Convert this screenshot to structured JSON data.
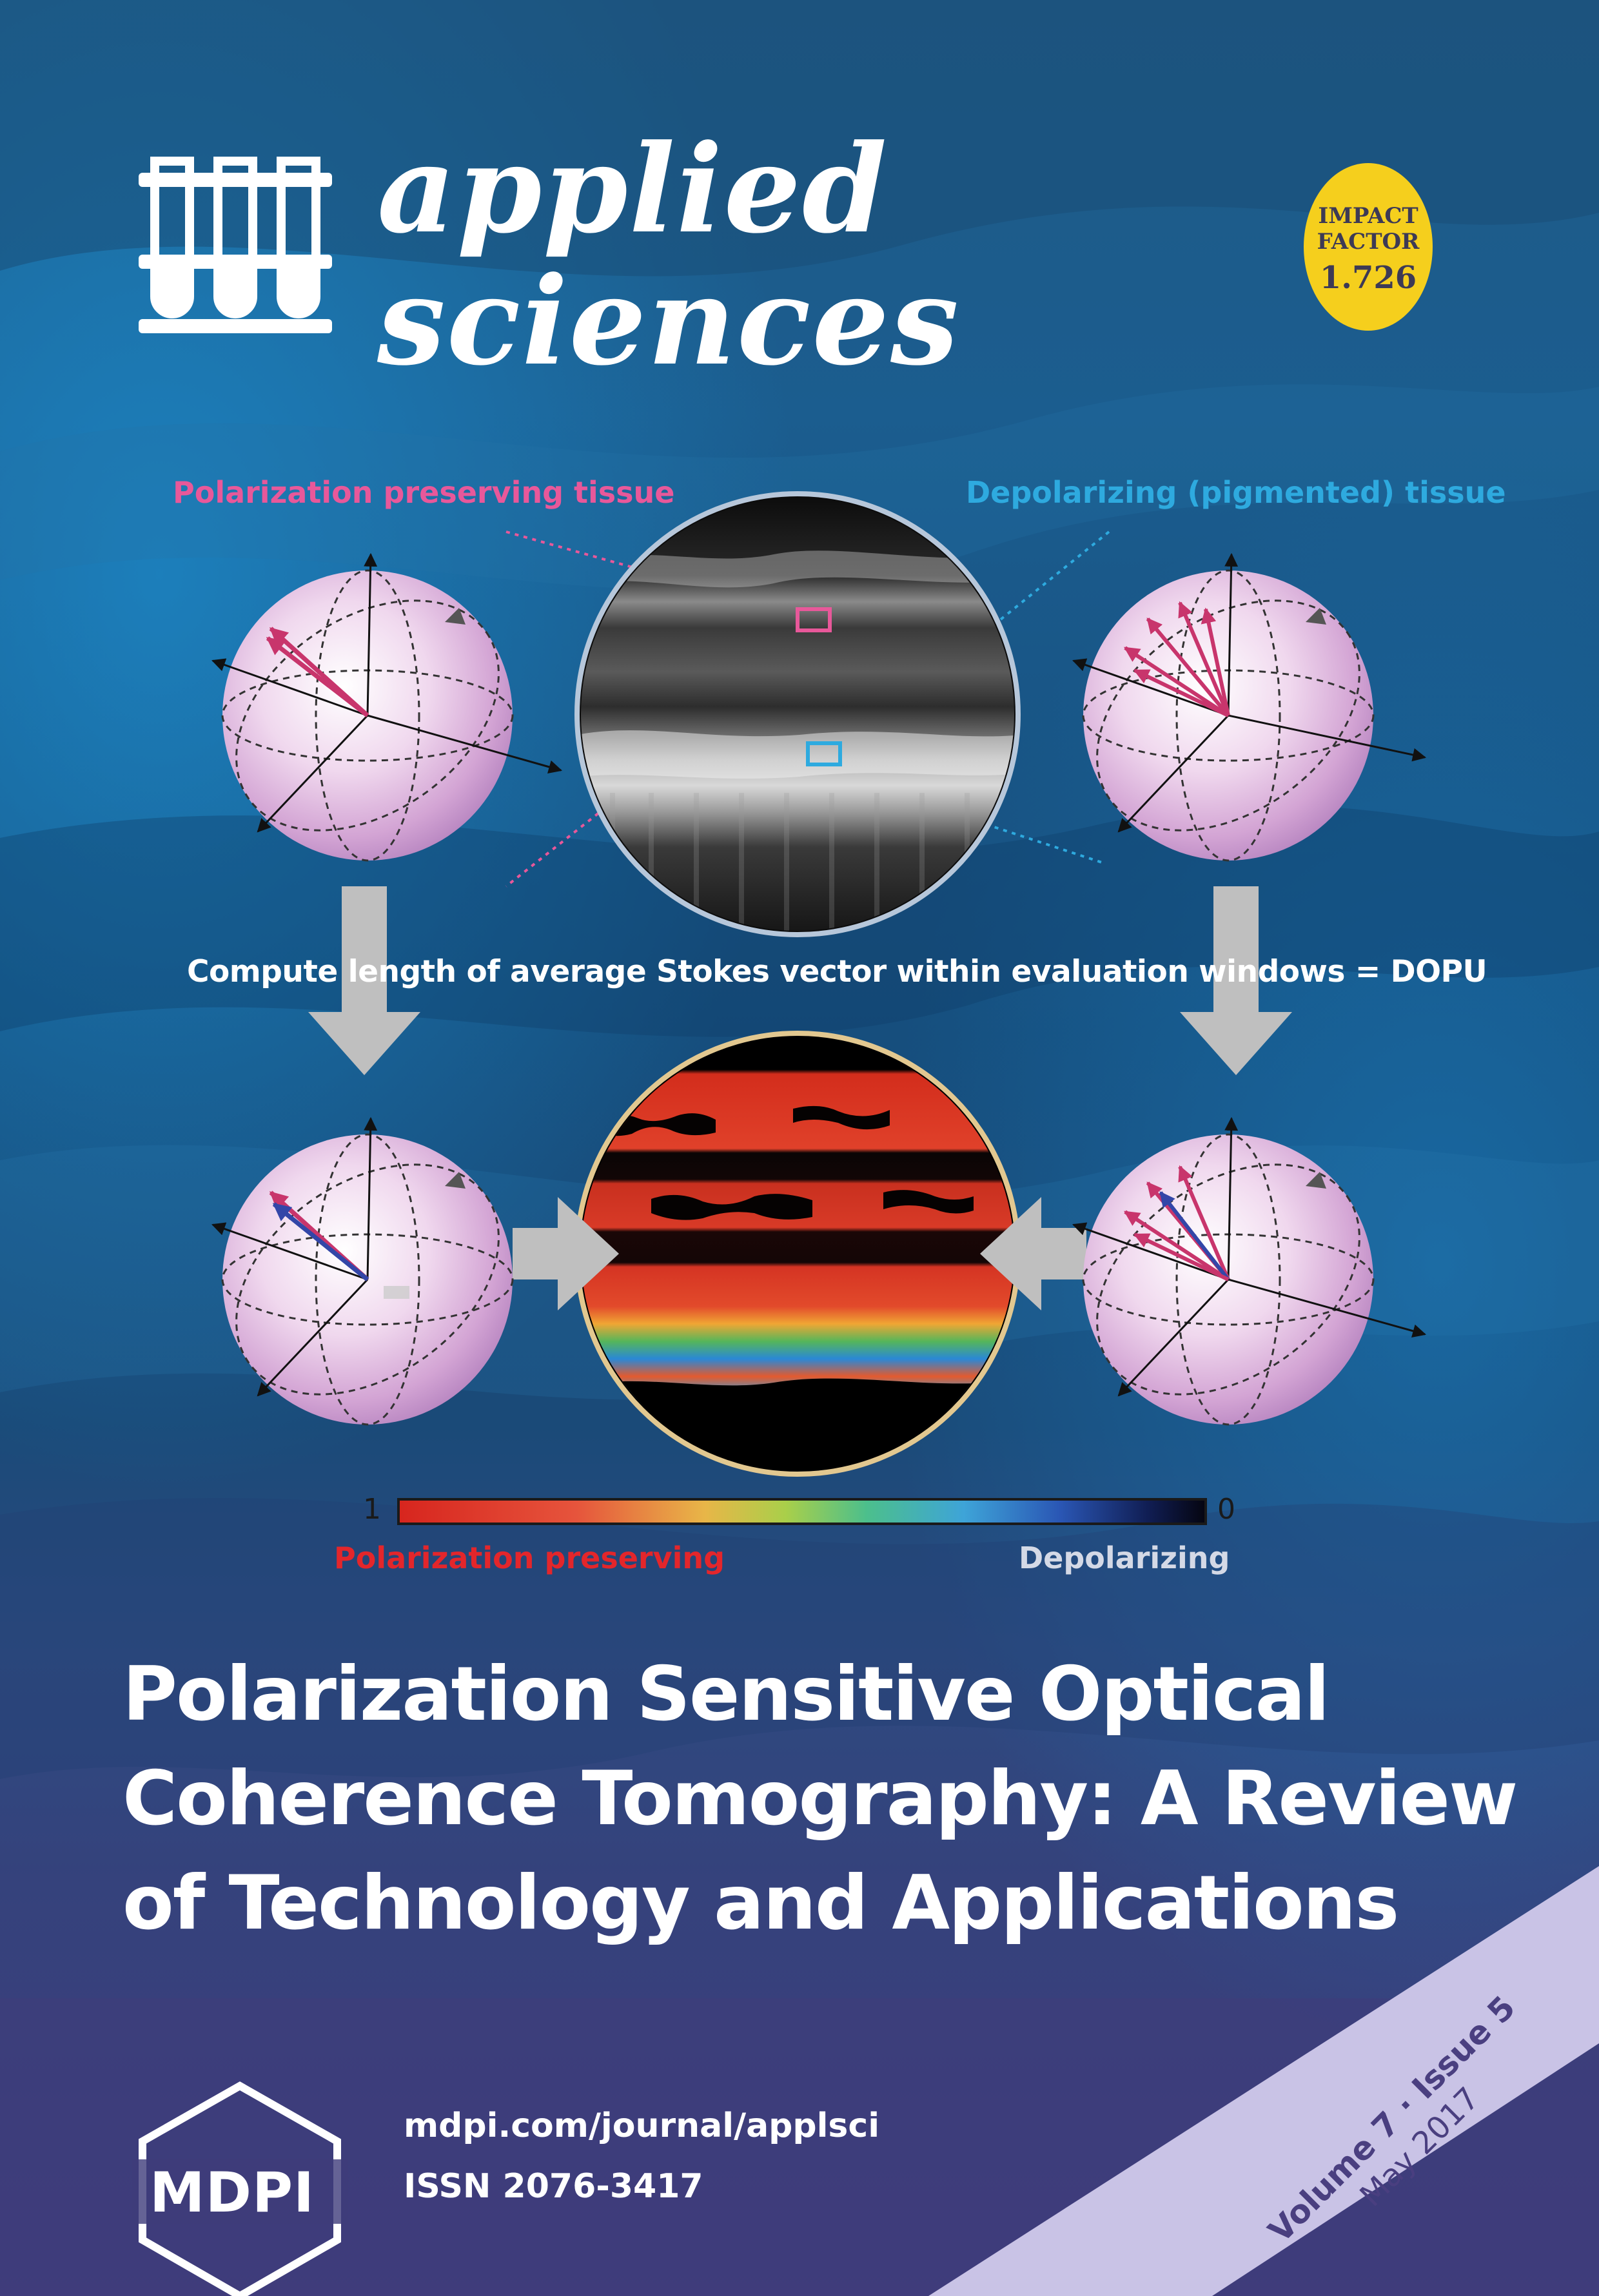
{
  "journal": {
    "name_line1": "applied",
    "name_line2": "sciences",
    "logo_icon": "test-tubes-icon"
  },
  "impact": {
    "line1": "IMPACT",
    "line2": "FACTOR",
    "value": "1.726"
  },
  "figure": {
    "label_left": "Polarization preserving tissue",
    "label_right": "Depolarizing (pigmented) tissue",
    "caption": "Compute length of average Stokes vector within evaluation windows = DOPU",
    "scale_max": "1",
    "scale_min": "0",
    "scale_left_label": "Polarization preserving",
    "scale_right_label": "Depolarizing"
  },
  "article": {
    "title_line1": "Polarization Sensitive Optical",
    "title_line2": "Coherence Tomography: A Review",
    "title_line3": "of Technology and Applications"
  },
  "publisher": {
    "name": "MDPI",
    "url": "mdpi.com/journal/applsci",
    "issn": "ISSN 2076-3417"
  },
  "issue": {
    "volume_issue": "Volume 7 · Issue 5",
    "date": "May 2017"
  },
  "colors": {
    "pink_label": "#e8589a",
    "blue_label": "#2eaadf",
    "red_label": "#e3262b",
    "badge": "#f5cf1d",
    "footer": "#3f3c7a",
    "ribbon": "#c9c3e6"
  }
}
